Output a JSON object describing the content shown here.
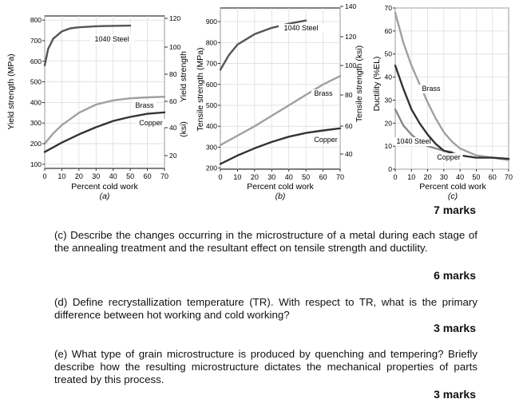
{
  "chart_data": [
    {
      "type": "line",
      "caption": "(a)",
      "xlabel": "Percent cold work",
      "ylabel": "Yield strength (MPa)",
      "ylabel_right": "(ksi)",
      "xlim": [
        0,
        70
      ],
      "ylim": [
        80,
        820
      ],
      "x_ticks": [
        0,
        10,
        20,
        30,
        40,
        50,
        60,
        70
      ],
      "y_ticks": [
        100,
        200,
        300,
        400,
        500,
        600,
        700,
        800
      ],
      "y_ticks_right": [
        20,
        40,
        60,
        80,
        100,
        120
      ],
      "series": [
        {
          "name": "1040 Steel",
          "color": "#555555",
          "x": [
            0,
            2,
            5,
            10,
            15,
            20,
            30,
            40,
            50
          ],
          "y": [
            580,
            660,
            710,
            745,
            760,
            765,
            770,
            772,
            773
          ]
        },
        {
          "name": "Brass",
          "color": "#a0a0a0",
          "x": [
            0,
            5,
            10,
            20,
            30,
            40,
            50,
            60,
            70
          ],
          "y": [
            200,
            250,
            290,
            350,
            390,
            410,
            420,
            425,
            428
          ]
        },
        {
          "name": "Copper",
          "color": "#333333",
          "x": [
            0,
            10,
            20,
            30,
            40,
            50,
            60,
            70
          ],
          "y": [
            160,
            205,
            245,
            280,
            310,
            330,
            345,
            352
          ]
        }
      ]
    },
    {
      "type": "line",
      "caption": "(b)",
      "xlabel": "Percent cold work",
      "ylabel": "Tensile strength (MPa)",
      "ylabel_right": "Tensile strength (ksi)",
      "xlim": [
        0,
        70
      ],
      "ylim": [
        195,
        965
      ],
      "x_ticks": [
        0,
        10,
        20,
        30,
        40,
        50,
        60,
        70
      ],
      "y_ticks": [
        200,
        300,
        400,
        500,
        600,
        700,
        800,
        900
      ],
      "y_ticks_right": [
        40,
        60,
        80,
        100,
        120,
        140
      ],
      "series": [
        {
          "name": "1040 Steel",
          "color": "#555555",
          "x": [
            0,
            5,
            10,
            20,
            30,
            40,
            50
          ],
          "y": [
            670,
            740,
            790,
            840,
            870,
            890,
            905
          ]
        },
        {
          "name": "Brass",
          "color": "#a0a0a0",
          "x": [
            0,
            10,
            20,
            30,
            40,
            50,
            60,
            70
          ],
          "y": [
            310,
            355,
            400,
            450,
            500,
            550,
            600,
            640
          ]
        },
        {
          "name": "Copper",
          "color": "#333333",
          "x": [
            0,
            10,
            20,
            30,
            40,
            50,
            60,
            70
          ],
          "y": [
            220,
            260,
            295,
            325,
            350,
            368,
            380,
            390
          ]
        }
      ]
    },
    {
      "type": "line",
      "caption": "(c)",
      "xlabel": "Percent cold work",
      "ylabel": "Ductility (%EL)",
      "xlim": [
        0,
        70
      ],
      "ylim": [
        0,
        70
      ],
      "x_ticks": [
        0,
        10,
        20,
        30,
        40,
        50,
        60,
        70
      ],
      "y_ticks": [
        0,
        10,
        20,
        30,
        40,
        50,
        60,
        70
      ],
      "series": [
        {
          "name": "Brass",
          "color": "#a0a0a0",
          "x": [
            0,
            5,
            10,
            15,
            20,
            25,
            30,
            35,
            40,
            50,
            60,
            70
          ],
          "y": [
            68,
            55,
            45,
            37,
            29,
            22,
            16,
            12,
            9,
            6,
            5,
            4
          ]
        },
        {
          "name": "1040 Steel",
          "color": "#888888",
          "x": [
            0,
            5,
            10,
            15,
            20,
            25,
            30,
            35
          ],
          "y": [
            26,
            19,
            15,
            12,
            10,
            9,
            8,
            7.5
          ]
        },
        {
          "name": "Copper",
          "color": "#333333",
          "x": [
            0,
            5,
            10,
            15,
            20,
            25,
            30,
            40,
            50,
            60,
            70
          ],
          "y": [
            45,
            35,
            26,
            20,
            15,
            11,
            8,
            6,
            5,
            5,
            4.5
          ]
        }
      ]
    }
  ],
  "questions": [
    {
      "marks_before": "7 marks"
    },
    {
      "text": "(c) Describe the changes occurring in the microstructure of a metal during each stage of the annealing treatment and the resultant effect on tensile strength and ductility.",
      "marks": "6 marks"
    },
    {
      "text": "(d) Define recrystallization temperature (TR). With respect to TR, what is the primary difference between hot working and cold working?",
      "marks": "3 marks"
    },
    {
      "text": "(e) What type of grain microstructure is produced by quenching and tempering? Briefly describe how the resulting microstructure dictates the mechanical properties of parts treated by this process.",
      "marks": "3 marks"
    }
  ]
}
